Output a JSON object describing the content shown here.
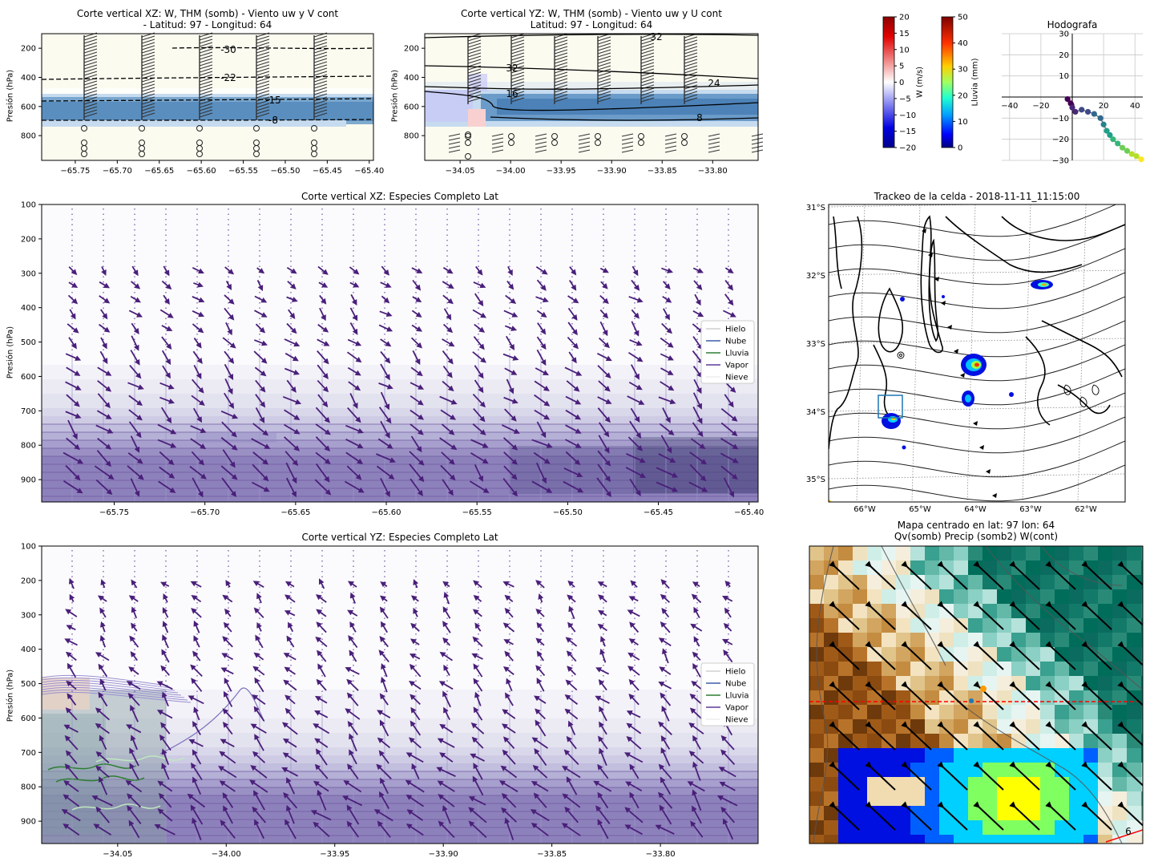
{
  "panels": {
    "xz_small": {
      "title": "Corte vertical XZ: W, THM (somb) - Viento uw y V cont\n- Latitud: 97 - Longitud: 64",
      "ylabel": "Presión (hPa)"
    },
    "yz_small": {
      "title": "Corte vertical YZ: W, THM (somb) - Viento uw y U cont\nLatitud: 97 - Longitud: 64",
      "ylabel": "Presión (hPa)"
    },
    "colorbar_w": {
      "label": "W (m/s)",
      "ticks": [
        "20",
        "15",
        "10",
        "5",
        "0",
        "−5",
        "−10",
        "−15",
        "−20"
      ],
      "colors": [
        "#8b0000",
        "#ff0000",
        "#ffffff",
        "#0000ff",
        "#00008b"
      ]
    },
    "colorbar_rain": {
      "label": "Lluvia (mm)",
      "ticks": [
        "50",
        "40",
        "30",
        "20",
        "10",
        "0"
      ],
      "colors": [
        "#7f0000",
        "#ff4000",
        "#ffff00",
        "#00ff80",
        "#00bfff",
        "#0000ff",
        "#00007f"
      ]
    },
    "hodograph": {
      "title": "Hodografa"
    },
    "xz_species": {
      "title": "Corte vertical XZ: Especies Completo Lat",
      "ylabel": "Presión (hPa)"
    },
    "tracking": {
      "title": "Trackeo de la celda - 2018-11-11_11:15:00",
      "lat_labels": [
        "31°S",
        "32°S",
        "33°S",
        "34°S",
        "35°S"
      ],
      "lon_labels": [
        "66°W",
        "65°W",
        "64°W",
        "63°W",
        "62°W"
      ]
    },
    "yz_species": {
      "title": "Corte vertical YZ: Especies Completo Lat",
      "ylabel": "Presión (hPa)"
    },
    "map": {
      "title": "Mapa centrado en lat: 97 lon: 64\nQv(somb) Precip (somb2) W(cont)",
      "contour_label": "6"
    }
  },
  "legend": {
    "items": [
      {
        "label": "Hielo",
        "color": "#d0d0d0"
      },
      {
        "label": "Nube",
        "color": "#3b5ea8"
      },
      {
        "label": "Lluvia",
        "color": "#2e7d32"
      },
      {
        "label": "Vapor",
        "color": "#5e3c99"
      },
      {
        "label": "Nieve",
        "color": "#eeeeee"
      }
    ]
  },
  "chart_data": [
    {
      "id": "xz_small",
      "type": "heatmap",
      "title": "Corte vertical XZ: W, THM (somb) - Viento uw y V cont - Latitud: 97 - Longitud: 64",
      "xlabel": "",
      "ylabel": "Presión (hPa)",
      "xlim": [
        -65.79,
        -65.395
      ],
      "ylim": [
        970,
        100
      ],
      "y_ticks": [
        200,
        400,
        600,
        800
      ],
      "x_ticks": [
        -65.75,
        -65.7,
        -65.65,
        -65.6,
        -65.55,
        -65.5,
        -65.45,
        -65.4
      ],
      "contour_labels": [
        "-30",
        "-22",
        "-15",
        "-8"
      ]
    },
    {
      "id": "yz_small",
      "type": "heatmap",
      "title": "Corte vertical YZ: W, THM (somb) - Viento uw y U cont Latitud: 97 - Longitud: 64",
      "xlabel": "",
      "ylabel": "Presión (hPa)",
      "xlim": [
        -34.085,
        -33.755
      ],
      "ylim": [
        970,
        100
      ],
      "y_ticks": [
        200,
        400,
        600,
        800
      ],
      "x_ticks": [
        -34.05,
        -34.0,
        -33.95,
        -33.9,
        -33.85,
        -33.8
      ],
      "contour_labels": [
        "32",
        "32",
        "24",
        "16",
        "8"
      ]
    },
    {
      "id": "hodograph",
      "type": "scatter",
      "title": "Hodografa",
      "xlim": [
        -45,
        45
      ],
      "ylim": [
        -30,
        30
      ],
      "x_ticks": [
        -40,
        -20,
        0,
        20,
        40
      ],
      "y_ticks": [
        -30,
        -20,
        -10,
        0,
        10,
        20,
        30
      ],
      "x": [
        -3,
        -1,
        0,
        2,
        6,
        10,
        14,
        18,
        20,
        22,
        24,
        26,
        29,
        32,
        35,
        38,
        41,
        44
      ],
      "y": [
        -1,
        -3,
        -5,
        -7,
        -6,
        -7,
        -8,
        -10,
        -13,
        -16,
        -18,
        -20,
        -22,
        -24,
        -25.5,
        -27,
        -28,
        -29.5
      ]
    },
    {
      "id": "xz_species",
      "type": "heatmap",
      "title": "Corte vertical XZ: Especies Completo Lat",
      "xlabel": "",
      "ylabel": "Presión (hPa)",
      "xlim": [
        -65.79,
        -65.395
      ],
      "ylim": [
        965,
        100
      ],
      "y_ticks": [
        100,
        200,
        300,
        400,
        500,
        600,
        700,
        800,
        900
      ],
      "x_ticks": [
        -65.75,
        -65.7,
        -65.65,
        -65.6,
        -65.55,
        -65.5,
        -65.45,
        -65.4
      ],
      "series": [
        {
          "name": "Hielo"
        },
        {
          "name": "Nube"
        },
        {
          "name": "Lluvia"
        },
        {
          "name": "Vapor"
        },
        {
          "name": "Nieve"
        }
      ]
    },
    {
      "id": "tracking",
      "type": "map",
      "title": "Trackeo de la celda - 2018-11-11_11:15:00",
      "lat_ticks": [
        "31°S",
        "32°S",
        "33°S",
        "34°S",
        "35°S"
      ],
      "lon_ticks": [
        "66°W",
        "65°W",
        "64°W",
        "63°W",
        "62°W"
      ]
    },
    {
      "id": "yz_species",
      "type": "heatmap",
      "title": "Corte vertical YZ: Especies Completo Lat",
      "xlabel": "",
      "ylabel": "Presión (hPa)",
      "xlim": [
        -34.085,
        -33.755
      ],
      "ylim": [
        965,
        100
      ],
      "y_ticks": [
        100,
        200,
        300,
        400,
        500,
        600,
        700,
        800,
        900
      ],
      "x_ticks": [
        -34.05,
        -34.0,
        -33.95,
        -33.9,
        -33.85,
        -33.8
      ],
      "series": [
        {
          "name": "Hielo"
        },
        {
          "name": "Nube"
        },
        {
          "name": "Lluvia"
        },
        {
          "name": "Vapor"
        },
        {
          "name": "Nieve"
        }
      ]
    },
    {
      "id": "map",
      "type": "heatmap",
      "title": "Mapa centrado en lat: 97 lon: 64 Qv(somb) Precip (somb2) W(cont)",
      "contour_labels": [
        "6"
      ]
    }
  ]
}
